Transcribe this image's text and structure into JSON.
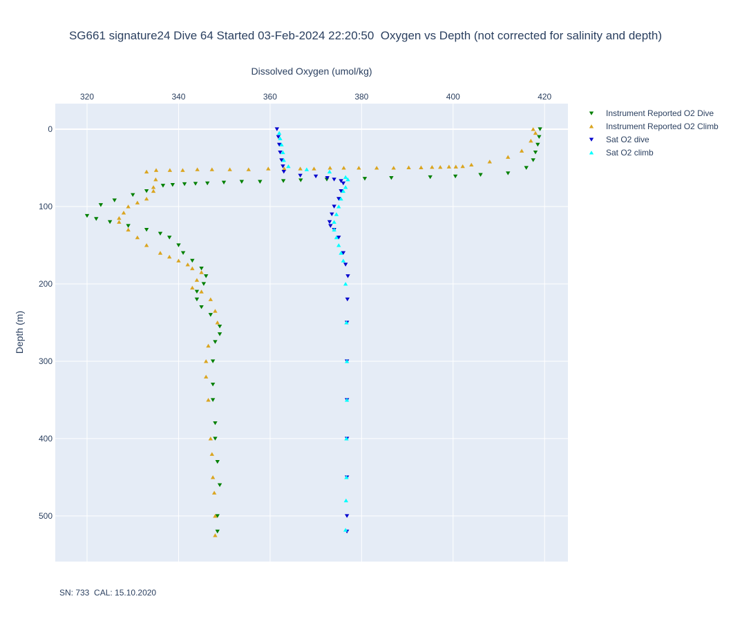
{
  "chart_data": {
    "type": "scatter",
    "title": "SG661 signature24 Dive 64 Started 03-Feb-2024 22:20:50  Oxygen vs Depth (not corrected for salinity and depth)",
    "x_label": "Dissolved Oxygen (umol/kg)",
    "y_label": "Depth (m)",
    "annotation": "SN: 733  CAL: 15.10.2020",
    "xlim": [
      313.05,
      425.1
    ],
    "ylim": [
      -33,
      559
    ],
    "y_reversed": true,
    "x_axis_side": "top",
    "xticks": [
      320,
      340,
      360,
      380,
      400,
      420
    ],
    "yticks": [
      0,
      100,
      200,
      300,
      400,
      500
    ],
    "grid": true,
    "legend_position": "right",
    "series": [
      {
        "name": "Instrument Reported O2 Dive",
        "color": "green",
        "marker": "triangle-down",
        "x": [
          419,
          418.8,
          418.5,
          418,
          417.5,
          416,
          412,
          406,
          400.5,
          395,
          386.5,
          380.7,
          372.4,
          366.7,
          362.9,
          357.8,
          353.8,
          349.9,
          346.3,
          343.7,
          341.3,
          338.7,
          336.6,
          333,
          330,
          326,
          323,
          320,
          322,
          325,
          329,
          333,
          336,
          338,
          340,
          341,
          343,
          345,
          346,
          345.5,
          344,
          344,
          345,
          347,
          349,
          349,
          348,
          347.5,
          347.5,
          347.5,
          348,
          348,
          348.5,
          349,
          348.5,
          348.5
        ],
        "y": [
          0,
          10,
          20,
          30,
          40,
          50,
          57,
          59,
          61,
          62,
          63,
          64,
          65,
          66,
          67,
          68,
          68,
          69,
          70,
          70.5,
          71,
          72,
          73,
          80,
          85,
          92,
          98,
          112,
          116,
          120,
          125,
          130,
          135,
          140,
          150,
          160,
          170,
          180,
          190,
          200,
          210,
          220,
          230,
          240,
          255,
          265,
          275,
          300,
          330,
          350,
          380,
          400,
          430,
          460,
          500,
          520
        ]
      },
      {
        "name": "Instrument Reported O2 Climb",
        "color": "goldenrod",
        "marker": "triangle-up",
        "x": [
          348,
          348,
          347.8,
          347.5,
          347.3,
          347,
          346.5,
          346,
          346,
          346.5,
          348.5,
          348,
          347,
          345,
          343,
          344,
          345,
          343,
          342,
          340,
          338,
          336,
          333,
          331,
          329,
          327,
          327,
          328,
          329,
          331,
          333,
          334.5,
          334.5,
          335,
          333,
          335.1,
          338.1,
          340.9,
          344.1,
          347.3,
          351.2,
          355.3,
          359.6,
          363.1,
          366.6,
          369.6,
          373.1,
          376.1,
          379.4,
          383.3,
          387,
          390.3,
          393,
          395.4,
          397.2,
          399.1,
          400.6,
          402.1,
          404,
          408,
          412,
          415,
          417,
          418,
          417.5
        ],
        "y": [
          525,
          500,
          470,
          450,
          420,
          400,
          350,
          320,
          300,
          280,
          250,
          235,
          220,
          210,
          205,
          195,
          185,
          180,
          175,
          170,
          165,
          160,
          150,
          140,
          130,
          120,
          115,
          108,
          100,
          95,
          90,
          80,
          75,
          65,
          55,
          53,
          53,
          53,
          52,
          52,
          52,
          52,
          51,
          51,
          51,
          51,
          50,
          50,
          50,
          50,
          50,
          49.5,
          49.5,
          49,
          49,
          48.5,
          48.5,
          48,
          46,
          42,
          36,
          28,
          15,
          5,
          0
        ]
      },
      {
        "name": "Sat O2 dive",
        "color": "mediumblue",
        "marker": "triangle-down",
        "x": [
          361.5,
          361.8,
          362,
          362.2,
          362.5,
          362.8,
          363,
          366.6,
          370,
          372.5,
          374,
          375.5,
          376,
          375.5,
          375,
          374,
          373.5,
          373,
          373.2,
          374,
          375,
          376,
          376.5,
          377,
          376.9,
          376.8,
          376.8,
          376.8,
          376.8,
          376.8,
          376.8,
          376.8
        ],
        "y": [
          0,
          10,
          20,
          30,
          40,
          48,
          55,
          60,
          61,
          63,
          65,
          67,
          70,
          80,
          90,
          100,
          110,
          120,
          125,
          130,
          140,
          160,
          175,
          190,
          220,
          250,
          300,
          350,
          400,
          450,
          500,
          520
        ]
      },
      {
        "name": "Sat O2 climb",
        "color": "cyan",
        "marker": "triangle-up",
        "x": [
          376.5,
          376.6,
          376.7,
          376.7,
          376.8,
          376.8,
          376.7,
          376.5,
          376,
          375.5,
          375,
          374.5,
          374,
          374,
          374.5,
          375,
          375.5,
          376,
          376.5,
          377,
          376.5,
          373,
          368,
          364,
          363,
          362.8,
          362.5,
          362.2,
          362
        ],
        "y": [
          518,
          480,
          450,
          400,
          350,
          300,
          250,
          200,
          170,
          160,
          150,
          140,
          130,
          120,
          110,
          100,
          90,
          80,
          75,
          65,
          62,
          55,
          52,
          48,
          40,
          30,
          20,
          12,
          5
        ]
      }
    ]
  }
}
